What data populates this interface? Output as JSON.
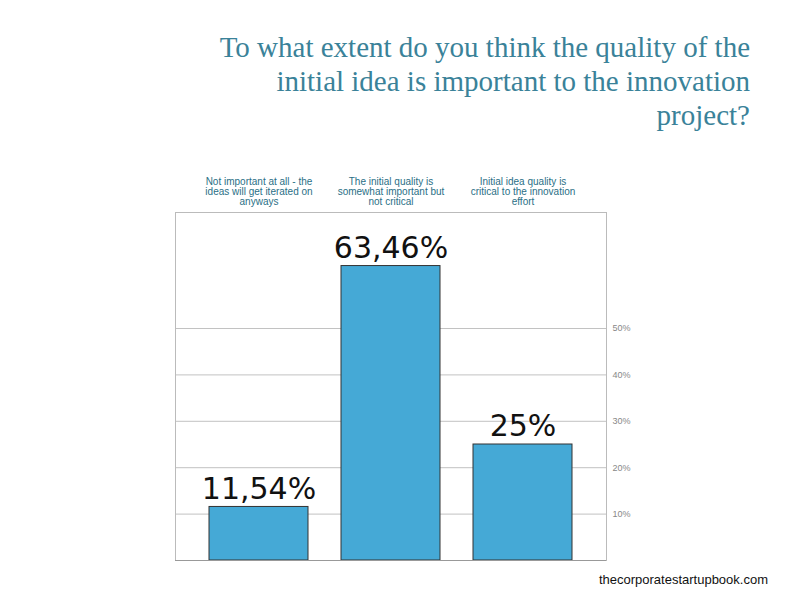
{
  "chart_data": {
    "type": "bar",
    "title": "To what extent do you think the quality of the initial idea is important to the innovation project?",
    "categories": [
      "Not important at all - the ideas will get iterated on anyways",
      "The initial quality is somewhat important but not critical",
      "Initial idea quality is critical to the innovation effort"
    ],
    "values": [
      11.54,
      63.46,
      25
    ],
    "value_labels": [
      "11,54%",
      "63,46%",
      "25%"
    ],
    "data_labels": true,
    "color": "#45a9d6",
    "ylim": [
      0,
      75
    ],
    "yticks": [
      {
        "value": 10,
        "label": "10%"
      },
      {
        "value": 20,
        "label": "20%"
      },
      {
        "value": 30,
        "label": "30%"
      },
      {
        "value": 40,
        "label": "40%"
      },
      {
        "value": 50,
        "label": "50%"
      }
    ],
    "grid": true,
    "caption": "thecorporatestartupbook.com"
  }
}
